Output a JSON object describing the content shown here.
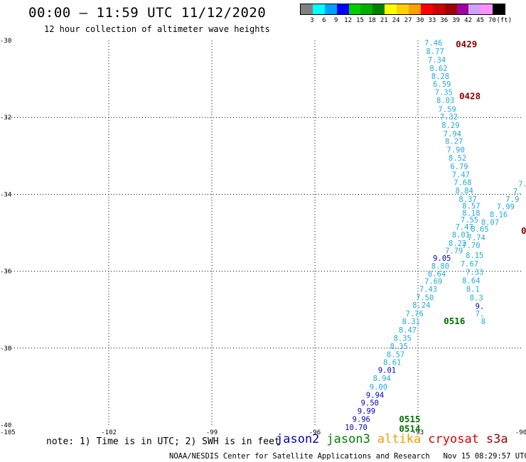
{
  "header": {
    "title": "00:00 – 11:59 UTC 11/12/2020",
    "subtitle": "12 hour collection of altimeter wave heights"
  },
  "legend": {
    "colors": [
      "#808080",
      "#00ffff",
      "#00a0ff",
      "#0000ff",
      "#00d000",
      "#00b000",
      "#008000",
      "#ffff00",
      "#ffd000",
      "#ffa000",
      "#ff0000",
      "#d00000",
      "#a00000",
      "#a000a0",
      "#d0a0ff",
      "#ff90ff",
      "#000000"
    ],
    "labels": [
      "3",
      "6",
      "9",
      "12",
      "15",
      "18",
      "21",
      "24",
      "27",
      "30",
      "33",
      "36",
      "39",
      "42",
      "45",
      "70",
      "(ft)"
    ],
    "label_offsets": [
      1,
      2,
      3,
      4,
      5,
      6,
      7,
      8,
      9,
      10,
      11,
      12,
      13,
      14,
      15,
      16,
      17
    ]
  },
  "map": {
    "lat_labels": [
      "-30",
      "-32",
      "-34",
      "-36",
      "-38",
      "-40"
    ],
    "lon_labels": [
      "-105",
      "-102",
      "-99",
      "-96",
      "-93",
      "-90"
    ],
    "lat_values": [
      -30,
      -32,
      -34,
      -36,
      -38,
      -40
    ],
    "lon_values": [
      -105,
      -102,
      -99,
      -96,
      -93,
      -90
    ],
    "extent": {
      "lon_min": -105,
      "lon_max": -90,
      "lat_min": -40,
      "lat_max": -30
    },
    "colors": {
      "cyan": "#22aadd",
      "blue": "#0000c8",
      "green": "#007000",
      "darkred": "#8b0000"
    },
    "tracks": [
      {
        "name": "track-a",
        "values": [
          "7.46",
          "8.77",
          "7.34",
          "8.62",
          "8.28",
          "6.59",
          "7.35",
          "8.03",
          "7.59",
          "7.32",
          "8.29",
          "7.94",
          "8.27",
          "7.90",
          "8.52",
          "6.79",
          "7.47",
          "7.68",
          "8.84",
          "8.37",
          "8.57",
          "8.18",
          "7.55",
          "7.47",
          "8.01",
          "8.22",
          "7.79",
          "9.05",
          "8.80",
          "8.64",
          "7.69",
          "7.43",
          "7.50",
          "8.24",
          "7.76",
          "8.31",
          "8.47",
          "8.35",
          "8.35",
          "8.57",
          "8.61",
          "9.01",
          "8.94",
          "9.00",
          "9.94",
          "9.50",
          "9.99",
          "9.96",
          "10.70"
        ],
        "colors": [
          "cyan",
          "cyan",
          "cyan",
          "cyan",
          "cyan",
          "cyan",
          "cyan",
          "cyan",
          "cyan",
          "cyan",
          "cyan",
          "cyan",
          "cyan",
          "cyan",
          "cyan",
          "cyan",
          "cyan",
          "cyan",
          "cyan",
          "cyan",
          "cyan",
          "cyan",
          "cyan",
          "cyan",
          "cyan",
          "cyan",
          "cyan",
          "blue",
          "cyan",
          "cyan",
          "cyan",
          "cyan",
          "cyan",
          "cyan",
          "cyan",
          "cyan",
          "cyan",
          "cyan",
          "cyan",
          "cyan",
          "cyan",
          "blue",
          "cyan",
          "cyan",
          "blue",
          "blue",
          "blue",
          "blue",
          "blue"
        ],
        "positions": [
          [
            -92.55,
            -30.06
          ],
          [
            -92.5,
            -30.28
          ],
          [
            -92.45,
            -30.5
          ],
          [
            -92.4,
            -30.72
          ],
          [
            -92.35,
            -30.92
          ],
          [
            -92.3,
            -31.13
          ],
          [
            -92.25,
            -31.34
          ],
          [
            -92.2,
            -31.55
          ],
          [
            -92.15,
            -31.78
          ],
          [
            -92.1,
            -31.98
          ],
          [
            -92.05,
            -32.2
          ],
          [
            -92.0,
            -32.42
          ],
          [
            -91.95,
            -32.62
          ],
          [
            -91.9,
            -32.84
          ],
          [
            -91.85,
            -33.05
          ],
          [
            -91.8,
            -33.27
          ],
          [
            -91.75,
            -33.48
          ],
          [
            -91.7,
            -33.69
          ],
          [
            -91.65,
            -33.9
          ],
          [
            -91.55,
            -34.12
          ],
          [
            -91.45,
            -34.3
          ],
          [
            -91.45,
            -34.48
          ],
          [
            -91.5,
            -34.66
          ],
          [
            -91.65,
            -34.84
          ],
          [
            -91.75,
            -35.05
          ],
          [
            -91.85,
            -35.27
          ],
          [
            -91.95,
            -35.46
          ],
          [
            -92.3,
            -35.66
          ],
          [
            -92.35,
            -35.86
          ],
          [
            -92.45,
            -36.06
          ],
          [
            -92.55,
            -36.26
          ],
          [
            -92.7,
            -36.46
          ],
          [
            -92.8,
            -36.68
          ],
          [
            -92.9,
            -36.88
          ],
          [
            -93.1,
            -37.1
          ],
          [
            -93.2,
            -37.3
          ],
          [
            -93.3,
            -37.52
          ],
          [
            -93.45,
            -37.74
          ],
          [
            -93.55,
            -37.95
          ],
          [
            -93.65,
            -38.16
          ],
          [
            -93.75,
            -38.36
          ],
          [
            -93.9,
            -38.57
          ],
          [
            -94.05,
            -38.78
          ],
          [
            -94.15,
            -39.0
          ],
          [
            -94.25,
            -39.21
          ],
          [
            -94.4,
            -39.42
          ],
          [
            -94.5,
            -39.63
          ],
          [
            -94.65,
            -39.84
          ],
          [
            -94.8,
            -40.06
          ]
        ]
      },
      {
        "name": "track-b",
        "values": [
          "7.",
          "7.",
          "7.9",
          "7.99",
          "8.16",
          "8.07",
          "8.65",
          "7.74",
          "7.70",
          "8.15",
          "7.67",
          "7.33",
          "8.64",
          "8.1",
          "8.3",
          "9.",
          "7.",
          "8"
        ],
        "colors": [
          "cyan",
          "cyan",
          "cyan",
          "cyan",
          "cyan",
          "cyan",
          "cyan",
          "cyan",
          "cyan",
          "cyan",
          "cyan",
          "cyan",
          "cyan",
          "cyan",
          "cyan",
          "blue",
          "cyan",
          "cyan"
        ],
        "positions": [
          [
            -89.95,
            -33.72
          ],
          [
            -90.1,
            -33.92
          ],
          [
            -90.25,
            -34.12
          ],
          [
            -90.45,
            -34.32
          ],
          [
            -90.65,
            -34.52
          ],
          [
            -90.9,
            -34.72
          ],
          [
            -91.2,
            -34.9
          ],
          [
            -91.3,
            -35.12
          ],
          [
            -91.45,
            -35.32
          ],
          [
            -91.35,
            -35.58
          ],
          [
            -91.5,
            -35.8
          ],
          [
            -91.35,
            -36.02
          ],
          [
            -91.45,
            -36.24
          ],
          [
            -91.4,
            -36.46
          ],
          [
            -91.3,
            -36.68
          ],
          [
            -91.2,
            -36.9
          ],
          [
            -91.2,
            -37.1
          ],
          [
            -91.1,
            -37.3
          ]
        ]
      }
    ],
    "time_labels": [
      {
        "text": "0429",
        "lon": -91.9,
        "lat": -30.1,
        "color": "darkred"
      },
      {
        "text": "0428",
        "lon": -91.8,
        "lat": -31.45,
        "color": "darkred"
      },
      {
        "text": "0-",
        "lon": -90.0,
        "lat": -34.95,
        "color": "darkred"
      },
      {
        "text": "0516",
        "lon": -92.25,
        "lat": -37.3,
        "color": "green"
      },
      {
        "text": "0515",
        "lon": -93.55,
        "lat": -39.85,
        "color": "green"
      },
      {
        "text": "0514",
        "lon": -93.55,
        "lat": -40.1,
        "color": "green"
      }
    ]
  },
  "note": "note: 1) Time is in UTC; 2) SWH is in feet",
  "satellites": [
    {
      "name": "jason2",
      "color": "#0000d0"
    },
    {
      "name": "jason3",
      "color": "#008000"
    },
    {
      "name": "altika",
      "color": "#ff9900"
    },
    {
      "name": "cryosat",
      "color": "#e00000"
    },
    {
      "name": "s3a",
      "color": "#a00000"
    }
  ],
  "footer": "NOAA/NESDIS Center for Satellite Applications and Research   Nov 15 08:29:57 UTC 2020"
}
